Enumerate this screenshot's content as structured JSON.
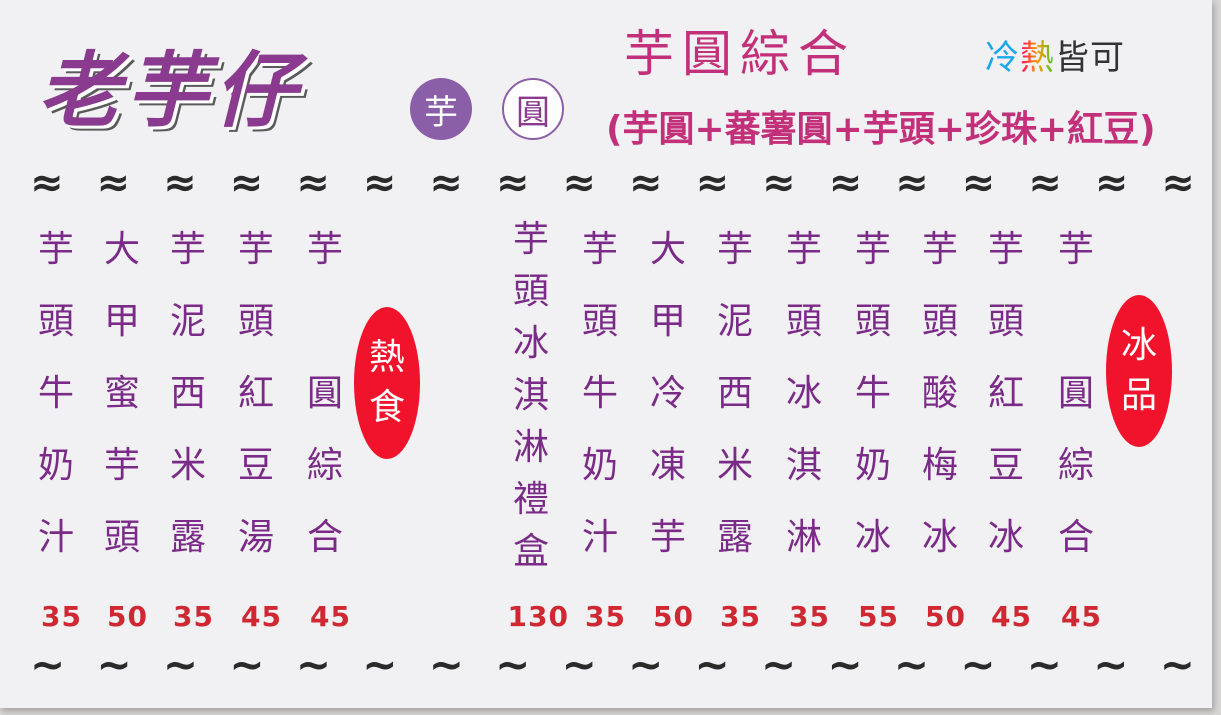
{
  "card": {
    "brand": "老芋仔",
    "badges": [
      "芋",
      "圓"
    ],
    "headline": "芋圓綜合",
    "hot_cold": {
      "cold": "冷",
      "hot": "熱",
      "rest": "皆可"
    },
    "ingredients": "(芋圓+蕃薯圓+芋頭+珍珠+紅豆)"
  },
  "divider_top": "≈",
  "divider_bottom": "~",
  "hot_menu": {
    "label_chars": [
      "熱",
      "食"
    ],
    "items": [
      {
        "name": [
          "芋",
          "頭",
          "牛",
          "奶",
          "汁"
        ],
        "price": "35"
      },
      {
        "name": [
          "大",
          "甲",
          "蜜",
          "芋",
          "頭"
        ],
        "price": "50"
      },
      {
        "name": [
          "芋",
          "泥",
          "西",
          "米",
          "露"
        ],
        "price": "35"
      },
      {
        "name": [
          "芋",
          "頭",
          "紅",
          "豆",
          "湯"
        ],
        "price": "45"
      },
      {
        "name": [
          "芋",
          "",
          "圓",
          "綜",
          "合"
        ],
        "price": "45"
      }
    ]
  },
  "ice_menu": {
    "label_chars": [
      "冰",
      "品"
    ],
    "items": [
      {
        "name": [
          "芋",
          "頭",
          "冰",
          "淇",
          "淋",
          "禮",
          "盒"
        ],
        "price": "130"
      },
      {
        "name": [
          "芋",
          "頭",
          "牛",
          "奶",
          "汁"
        ],
        "price": "35"
      },
      {
        "name": [
          "大",
          "甲",
          "冷",
          "凍",
          "芋"
        ],
        "price": "50"
      },
      {
        "name": [
          "芋",
          "泥",
          "西",
          "米",
          "露"
        ],
        "price": "35"
      },
      {
        "name": [
          "芋",
          "頭",
          "冰",
          "淇",
          "淋"
        ],
        "price": "35"
      },
      {
        "name": [
          "芋",
          "頭",
          "牛",
          "奶",
          "冰"
        ],
        "price": "55"
      },
      {
        "name": [
          "芋",
          "頭",
          "酸",
          "梅",
          "冰"
        ],
        "price": "50"
      },
      {
        "name": [
          "芋",
          "頭",
          "紅",
          "豆",
          "冰"
        ],
        "price": "45"
      },
      {
        "name": [
          "芋",
          "",
          "圓",
          "綜",
          "合"
        ],
        "price": "45"
      }
    ]
  }
}
